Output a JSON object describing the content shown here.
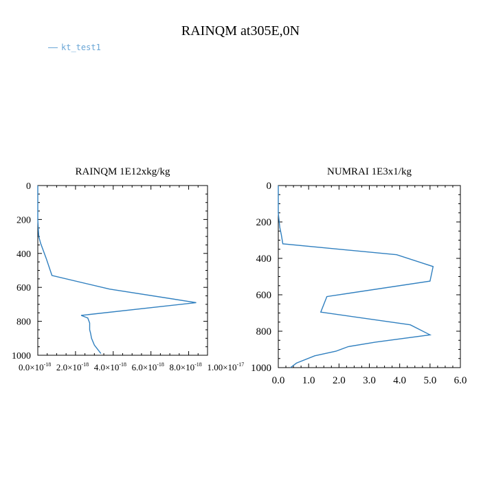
{
  "title": "RAINQM at305E,0N",
  "legend": {
    "label": "kt_test1",
    "color": "#6aa6d6"
  },
  "line_color": "#2f7fbf",
  "chart_data": [
    {
      "type": "line",
      "title": "RAINQM  1E12xkg/kg",
      "xlim": [
        0,
        9e-18
      ],
      "ylim": [
        0,
        1000
      ],
      "y_inverted": true,
      "x_ticks": [
        {
          "v": 0,
          "label": "0.0×10"
        },
        {
          "v": 2e-18,
          "label": "2.0×10"
        },
        {
          "v": 4e-18,
          "label": "4.0×10"
        },
        {
          "v": 6e-18,
          "label": "6.0×10"
        },
        {
          "v": 8e-18,
          "label": "8.0×10"
        },
        {
          "v": 1e-17,
          "label": "1.00×10"
        }
      ],
      "x_tick_exponents": [
        "-18",
        "-18",
        "-18",
        "-18",
        "-18",
        "-17"
      ],
      "y_ticks": [
        0,
        200,
        400,
        600,
        800,
        1000
      ],
      "series": [
        {
          "x": [
            0,
            0,
            0,
            5e-20,
            1.5e-19,
            4.5e-19,
            7.5e-19,
            3.8e-18,
            8.4e-18,
            2.3e-18,
            2.65e-18,
            2.75e-18,
            2.75e-18,
            2.8e-18,
            2.85e-18,
            3e-18,
            3.35e-18
          ],
          "y": [
            0,
            100,
            200,
            300,
            340,
            430,
            530,
            610,
            690,
            765,
            780,
            810,
            850,
            870,
            900,
            940,
            990
          ]
        }
      ]
    },
    {
      "type": "line",
      "title": "NUMRAI  1E3x1/kg",
      "xlim": [
        0,
        6
      ],
      "ylim": [
        0,
        1000
      ],
      "y_inverted": true,
      "x_ticks": [
        {
          "v": 0,
          "label": "0.0"
        },
        {
          "v": 1,
          "label": "1.0"
        },
        {
          "v": 2,
          "label": "2.0"
        },
        {
          "v": 3,
          "label": "3.0"
        },
        {
          "v": 4,
          "label": "4.0"
        },
        {
          "v": 5,
          "label": "5.0"
        },
        {
          "v": 6,
          "label": "6.0"
        }
      ],
      "y_ticks": [
        0,
        200,
        400,
        600,
        800,
        1000
      ],
      "series": [
        {
          "x": [
            0,
            0,
            0.05,
            0.1,
            0.15,
            3.9,
            5.1,
            5.0,
            1.6,
            1.4,
            4.35,
            5.0,
            3.2,
            2.3,
            1.9,
            1.2,
            0.6,
            0.4
          ],
          "y": [
            0,
            150,
            230,
            270,
            320,
            380,
            445,
            525,
            610,
            695,
            765,
            820,
            860,
            885,
            910,
            935,
            975,
            1000
          ]
        }
      ]
    }
  ]
}
